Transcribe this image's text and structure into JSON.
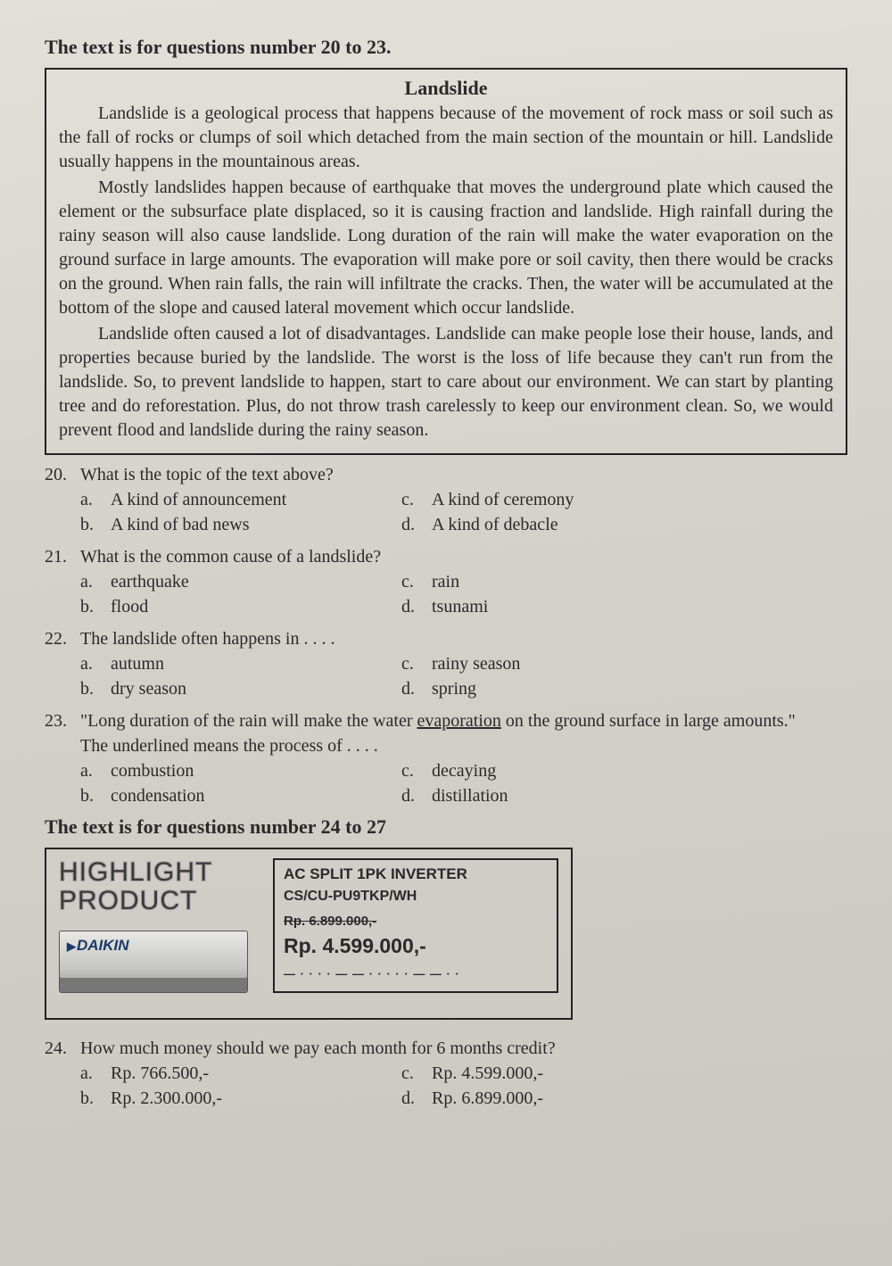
{
  "heading1": "The text is for questions number 20 to 23.",
  "passage": {
    "title": "Landslide",
    "p1": "Landslide is a geological process that happens because of the movement of rock mass or soil such as the fall of rocks or clumps of soil which detached from the main section of the mountain or hill. Landslide usually happens in the mountainous areas.",
    "p2": "Mostly landslides happen because of earthquake that moves the underground plate which caused the element or the subsurface plate displaced, so it is causing fraction and landslide. High rainfall during the rainy season will also cause landslide. Long duration of the rain will make the water evaporation on the ground surface in large amounts. The evaporation will make pore or soil cavity, then there would be cracks on the ground. When rain falls, the rain will infiltrate the cracks. Then, the water will be accumulated at the bottom of the slope and caused lateral movement which occur landslide.",
    "p3": "Landslide often caused a lot of disadvantages. Landslide can make people lose their house, lands, and properties because buried by the landslide. The worst is the loss of life because they can't run from the landslide. So, to prevent landslide to happen, start to care about our environment. We can start by planting tree and do reforestation. Plus, do not throw trash carelessly to keep our environment clean. So, we would prevent flood and landslide during the rainy season."
  },
  "q20": {
    "num": "20.",
    "stem": "What is the topic of the text above?",
    "a": "A kind of announcement",
    "b": "A kind of bad news",
    "c": "A kind of ceremony",
    "d": "A kind of debacle"
  },
  "q21": {
    "num": "21.",
    "stem": "What is the common cause of a landslide?",
    "a": "earthquake",
    "b": "flood",
    "c": "rain",
    "d": "tsunami"
  },
  "q22": {
    "num": "22.",
    "stem": "The landslide often happens in . . . .",
    "a": "autumn",
    "b": "dry season",
    "c": "rainy season",
    "d": "spring"
  },
  "q23": {
    "num": "23.",
    "stem_pre": "\"Long duration of the rain will make the water ",
    "stem_u": "evaporation",
    "stem_post": " on the ground surface in large amounts.\"",
    "sub": "The underlined means the process of . . . .",
    "a": "combustion",
    "b": "condensation",
    "c": "decaying",
    "d": "distillation"
  },
  "heading2": "The text is for questions number 24 to 27",
  "ad": {
    "title1": "HIGHLIGHT",
    "title2": "PRODUCT",
    "brand": "DAIKIN",
    "spec1": "AC SPLIT 1PK INVERTER",
    "spec2": "CS/CU-PU9TKP/WH",
    "price_old": "Rp. 6.899.000,-",
    "price_new": "Rp. 4.599.000,-"
  },
  "q24": {
    "num": "24.",
    "stem": "How much money should we pay each month for 6 months credit?",
    "a": "Rp. 766.500,-",
    "b": "Rp. 2.300.000,-",
    "c": "Rp. 4.599.000,-",
    "d": "Rp. 6.899.000,-"
  },
  "letters": {
    "a": "a.",
    "b": "b.",
    "c": "c.",
    "d": "d."
  }
}
